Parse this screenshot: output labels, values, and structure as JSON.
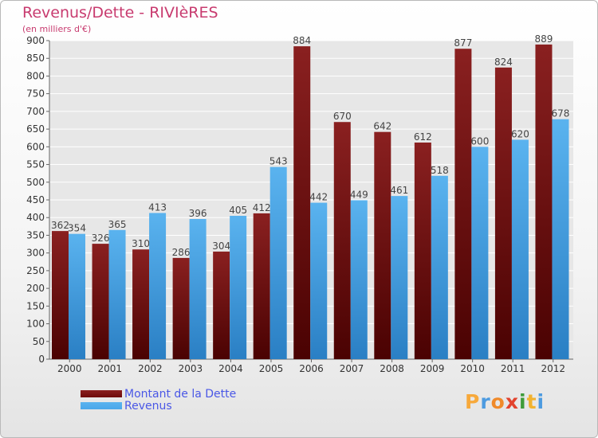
{
  "title": "Revenus/Dette - RIVIèRES",
  "subtitle": "(en milliers d'€)",
  "colors": {
    "dette": "#6e0b0b",
    "revenus": "#4aa7ea",
    "title": "#c83b6f",
    "legend_text": "#4a57e6"
  },
  "legend": [
    {
      "label": "Montant de la Dette",
      "color": "#6e0b0b"
    },
    {
      "label": "Revenus",
      "color": "#4aa7ea"
    }
  ],
  "logo": {
    "text": "Proxiti",
    "letters": [
      {
        "ch": "P",
        "color": "#f7a93b"
      },
      {
        "ch": "r",
        "color": "#4d9be0"
      },
      {
        "ch": "o",
        "color": "#f08a2a"
      },
      {
        "ch": "x",
        "color": "#e2432e"
      },
      {
        "ch": "i",
        "color": "#3f9c3a"
      },
      {
        "ch": "t",
        "color": "#f2b330"
      },
      {
        "ch": "i",
        "color": "#4d9be0"
      }
    ]
  },
  "chart_data": {
    "type": "bar",
    "categories": [
      "2000",
      "2001",
      "2002",
      "2003",
      "2004",
      "2005",
      "2006",
      "2007",
      "2008",
      "2009",
      "2010",
      "2011",
      "2012"
    ],
    "series": [
      {
        "name": "Montant de la Dette",
        "values": [
          362,
          326,
          310,
          286,
          304,
          412,
          884,
          670,
          642,
          612,
          877,
          824,
          889
        ]
      },
      {
        "name": "Revenus",
        "values": [
          354,
          365,
          413,
          396,
          405,
          543,
          442,
          449,
          461,
          518,
          600,
          620,
          678
        ]
      }
    ],
    "ylim": [
      0,
      900
    ],
    "yticks": [
      0,
      50,
      100,
      150,
      200,
      250,
      300,
      350,
      400,
      450,
      500,
      550,
      600,
      650,
      700,
      750,
      800,
      850,
      900
    ],
    "grid": true,
    "legend_position": "bottom-left"
  }
}
